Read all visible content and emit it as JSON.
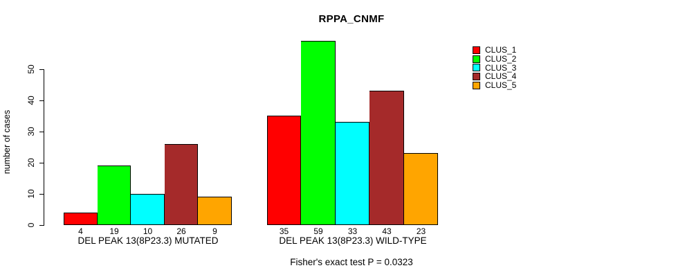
{
  "chart_data": {
    "type": "bar",
    "title": "RPPA_CNMF",
    "xlabel": "",
    "ylabel": "number of cases",
    "ylim": [
      0,
      59
    ],
    "yticks": [
      0,
      10,
      20,
      30,
      40,
      50
    ],
    "grid": false,
    "legend_position": "right",
    "categories": [
      "DEL PEAK 13(8P23.3) MUTATED",
      "DEL PEAK 13(8P23.3) WILD-TYPE"
    ],
    "series": [
      {
        "name": "CLUS_1",
        "color": "#FF0000",
        "values": [
          4,
          35
        ]
      },
      {
        "name": "CLUS_2",
        "color": "#00FF00",
        "values": [
          19,
          59
        ]
      },
      {
        "name": "CLUS_3",
        "color": "#00FFFF",
        "values": [
          10,
          33
        ]
      },
      {
        "name": "CLUS_4",
        "color": "#A52A2A",
        "values": [
          26,
          43
        ]
      },
      {
        "name": "CLUS_5",
        "color": "#FFA500",
        "values": [
          9,
          23
        ]
      }
    ],
    "bar_value_labels": true,
    "annotation": "Fisher's exact test P = 0.0323"
  }
}
